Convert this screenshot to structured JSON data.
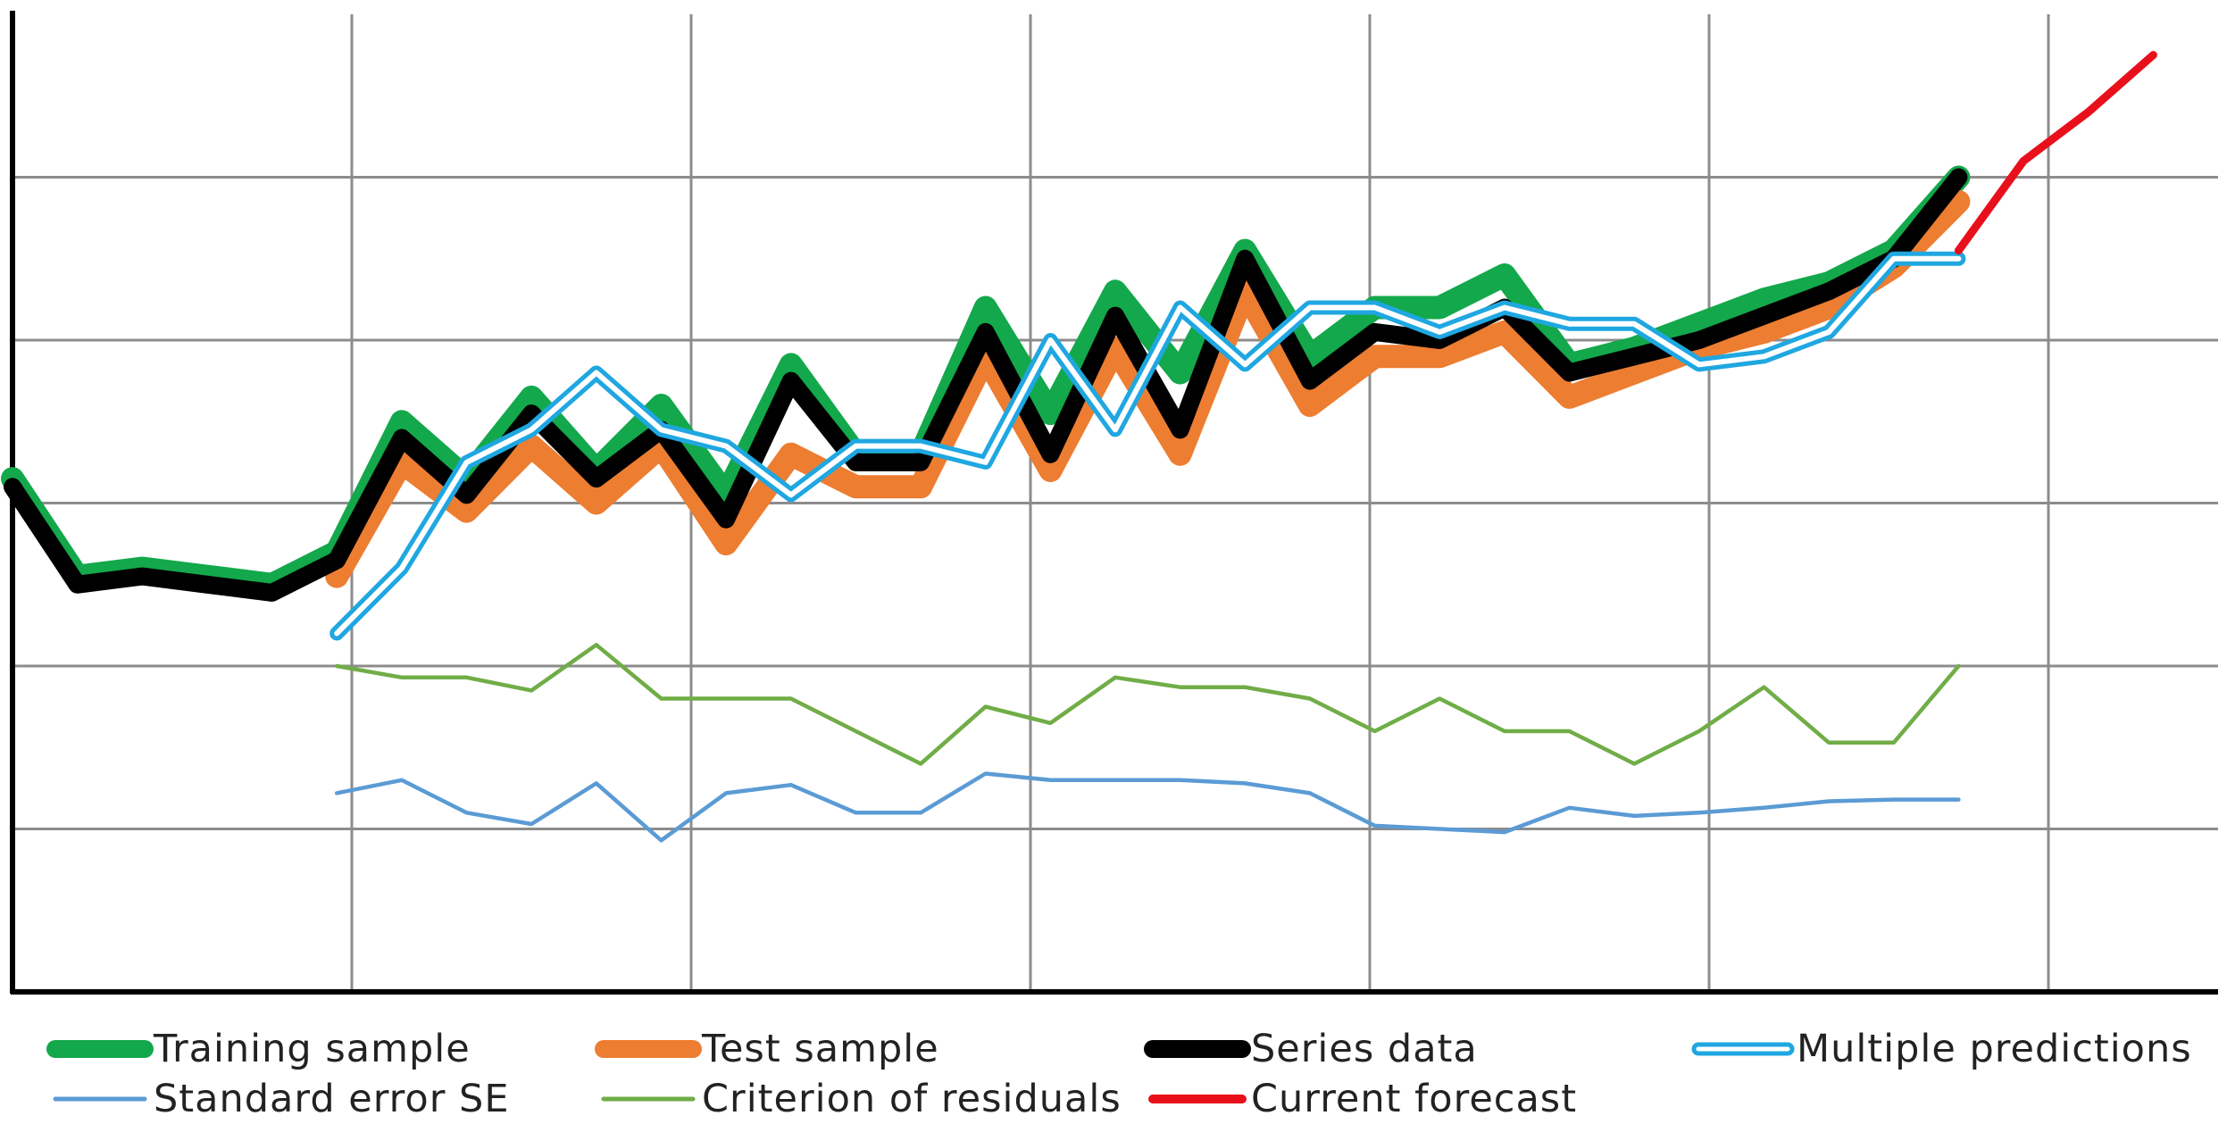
{
  "chart_data": {
    "type": "line",
    "title": "",
    "xlabel": "",
    "ylabel": "",
    "x": [
      0,
      1,
      2,
      3,
      4,
      5,
      6,
      7,
      8,
      9,
      10,
      11,
      12,
      13,
      14,
      15,
      16,
      17,
      18,
      19,
      20,
      21,
      22,
      23,
      24,
      25,
      26,
      27,
      28,
      29,
      30,
      31,
      32,
      33
    ],
    "xlim": [
      0,
      34
    ],
    "ylim": [
      0,
      6
    ],
    "grid": true,
    "legend": "bottom",
    "series": [
      {
        "name": "Training sample",
        "color": "#13a84b",
        "style": "thick",
        "x": [
          0,
          1,
          2,
          3,
          4,
          5,
          6,
          7,
          8,
          9,
          10,
          11,
          12,
          13,
          14,
          15,
          16,
          17,
          18,
          19,
          20,
          21,
          22,
          23,
          24,
          25,
          26,
          27,
          28,
          29,
          30,
          31,
          32,
          33
        ],
        "values": [
          3.15,
          2.55,
          2.6,
          2.55,
          2.5,
          2.7,
          3.5,
          3.15,
          3.65,
          3.2,
          3.6,
          3.05,
          3.85,
          3.3,
          3.3,
          4.2,
          3.55,
          4.3,
          3.8,
          4.55,
          3.9,
          4.2,
          4.2,
          4.4,
          3.85,
          3.95,
          4.1,
          4.25,
          4.35,
          4.55,
          5.0,
          null,
          null,
          null
        ]
      },
      {
        "name": "Test sample",
        "color": "#ed7d31",
        "style": "thick",
        "x": [
          5,
          6,
          7,
          8,
          9,
          10,
          11,
          12,
          13,
          14,
          15,
          16,
          17,
          18,
          19,
          20,
          21,
          22,
          23,
          24,
          25,
          26,
          27,
          28,
          29,
          30
        ],
        "values": [
          2.55,
          3.25,
          2.95,
          3.35,
          3.0,
          3.35,
          2.75,
          3.3,
          3.1,
          3.1,
          3.9,
          3.2,
          3.95,
          3.3,
          4.3,
          3.6,
          3.9,
          3.9,
          4.05,
          3.65,
          3.8,
          3.95,
          4.05,
          4.2,
          4.45,
          4.85
        ]
      },
      {
        "name": "Series data",
        "color": "#000000",
        "style": "thick",
        "x": [
          0,
          1,
          2,
          3,
          4,
          5,
          6,
          7,
          8,
          9,
          10,
          11,
          12,
          13,
          14,
          15,
          16,
          17,
          18,
          19,
          20,
          21,
          22,
          23,
          24,
          25,
          26,
          27,
          28,
          29,
          30
        ],
        "values": [
          3.1,
          2.5,
          2.55,
          2.5,
          2.45,
          2.65,
          3.4,
          3.05,
          3.55,
          3.15,
          3.45,
          2.9,
          3.75,
          3.25,
          3.25,
          4.05,
          3.3,
          4.15,
          3.45,
          4.5,
          3.75,
          4.05,
          4.0,
          4.2,
          3.8,
          3.9,
          4.0,
          4.15,
          4.3,
          4.5,
          5.0
        ]
      },
      {
        "name": "Multiple predictions",
        "color": "#1fa7e1",
        "style": "double",
        "x": [
          5,
          6,
          7,
          8,
          9,
          10,
          11,
          12,
          13,
          14,
          15,
          16,
          17,
          18,
          19,
          20,
          21,
          22,
          23,
          24,
          25,
          26,
          27,
          28,
          29,
          30
        ],
        "values": [
          2.2,
          2.6,
          3.25,
          3.45,
          3.8,
          3.45,
          3.35,
          3.05,
          3.35,
          3.35,
          3.25,
          4.0,
          3.45,
          4.2,
          3.85,
          4.2,
          4.2,
          4.05,
          4.2,
          4.1,
          4.1,
          3.85,
          3.9,
          4.05,
          4.5,
          4.5
        ]
      },
      {
        "name": "Standard error SE",
        "color": "#5b9bd5",
        "style": "thin",
        "x": [
          5,
          6,
          7,
          8,
          9,
          10,
          11,
          12,
          13,
          14,
          15,
          16,
          17,
          18,
          19,
          20,
          21,
          22,
          23,
          24,
          25,
          26,
          27,
          28,
          29,
          30
        ],
        "values": [
          1.22,
          1.3,
          1.1,
          1.03,
          1.28,
          0.93,
          1.22,
          1.27,
          1.1,
          1.1,
          1.34,
          1.3,
          1.3,
          1.3,
          1.28,
          1.22,
          1.02,
          1.0,
          0.98,
          1.13,
          1.08,
          1.1,
          1.13,
          1.17,
          1.18,
          1.18
        ]
      },
      {
        "name": "Criterion of residuals",
        "color": "#70ad47",
        "style": "thin",
        "x": [
          5,
          6,
          7,
          8,
          9,
          10,
          11,
          12,
          13,
          14,
          15,
          16,
          17,
          18,
          19,
          20,
          21,
          22,
          23,
          24,
          25,
          26,
          27,
          28,
          29,
          30
        ],
        "values": [
          2.0,
          1.93,
          1.93,
          1.85,
          2.13,
          1.8,
          1.8,
          1.8,
          1.6,
          1.4,
          1.75,
          1.65,
          1.93,
          1.87,
          1.87,
          1.8,
          1.6,
          1.8,
          1.6,
          1.6,
          1.4,
          1.6,
          1.87,
          1.53,
          1.53,
          2.0
        ]
      },
      {
        "name": "Current forecast",
        "color": "#e8101b",
        "style": "medium",
        "x": [
          30,
          31,
          32,
          33
        ],
        "values": [
          4.55,
          5.1,
          5.4,
          5.75
        ]
      }
    ]
  }
}
